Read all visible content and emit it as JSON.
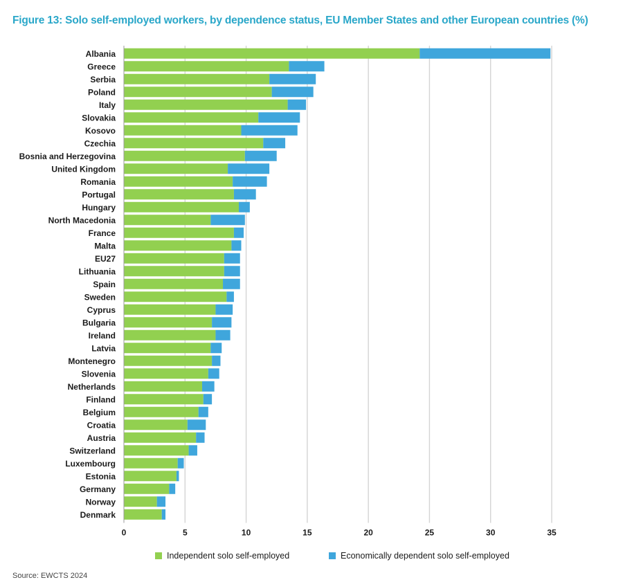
{
  "figure": {
    "title": "Figure 13: Solo self-employed workers, by dependence status, EU Member States and other European  countries (%)",
    "source": "Source: EWCTS 2024"
  },
  "colors": {
    "title": "#2aa7c9",
    "independent": "#92d050",
    "dependent": "#3fa6dc",
    "gridline": "#d4d4d4"
  },
  "chart_data": {
    "type": "bar",
    "orientation": "horizontal",
    "stacked": true,
    "categories": [
      "Albania",
      "Greece",
      "Serbia",
      "Poland",
      "Italy",
      "Slovakia",
      "Kosovo",
      "Czechia",
      "Bosnia and Herzegovina",
      "United Kingdom",
      "Romania",
      "Portugal",
      "Hungary",
      "North Macedonia",
      "France",
      "Malta",
      "EU27",
      "Lithuania",
      "Spain",
      "Sweden",
      "Cyprus",
      "Bulgaria",
      "Ireland",
      "Latvia",
      "Montenegro",
      "Slovenia",
      "Netherlands",
      "Finland",
      "Belgium",
      "Croatia",
      "Austria",
      "Switzerland",
      "Luxembourg",
      "Estonia",
      "Germany",
      "Norway",
      "Denmark"
    ],
    "series": [
      {
        "name": "Independent solo self-employed",
        "values": [
          24.2,
          13.5,
          11.9,
          12.1,
          13.4,
          11.0,
          9.6,
          11.4,
          9.9,
          8.5,
          8.9,
          9.0,
          9.4,
          7.1,
          9.0,
          8.8,
          8.2,
          8.2,
          8.1,
          8.4,
          7.5,
          7.2,
          7.5,
          7.1,
          7.2,
          6.9,
          6.4,
          6.5,
          6.1,
          5.2,
          5.9,
          5.3,
          4.4,
          4.3,
          3.7,
          2.7,
          3.1
        ]
      },
      {
        "name": "Economically dependent solo self-employed",
        "values": [
          10.7,
          2.9,
          3.8,
          3.4,
          1.5,
          3.4,
          4.6,
          1.8,
          2.6,
          3.4,
          2.8,
          1.8,
          0.9,
          2.8,
          0.8,
          0.8,
          1.3,
          1.3,
          1.4,
          0.6,
          1.4,
          1.6,
          1.2,
          0.9,
          0.7,
          0.9,
          1.0,
          0.7,
          0.8,
          1.5,
          0.7,
          0.7,
          0.5,
          0.2,
          0.5,
          0.7,
          0.3
        ]
      }
    ],
    "xlim": [
      0,
      35
    ],
    "xticks": [
      0,
      5,
      10,
      15,
      20,
      25,
      30,
      35
    ],
    "xlabel": "",
    "ylabel": "",
    "grid": "vertical",
    "legend_position": "bottom"
  }
}
